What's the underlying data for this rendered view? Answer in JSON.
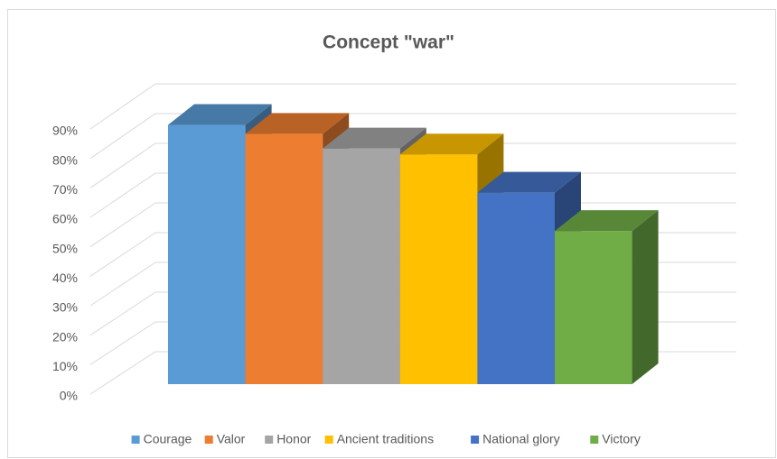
{
  "chart_data": {
    "type": "bar",
    "title": "Concept \"war\"",
    "categories": [
      "Courage",
      "Valor",
      "Honor",
      "Ancient traditions",
      "National glory",
      "Victory"
    ],
    "values": [
      88,
      85,
      80,
      78,
      65,
      52
    ],
    "colors": [
      "#5b9bd5",
      "#ed7d31",
      "#a5a5a5",
      "#ffc000",
      "#4472c4",
      "#70ad47"
    ],
    "ylim": [
      0,
      90
    ],
    "yticks": [
      {
        "value": 0,
        "label": "0%"
      },
      {
        "value": 10,
        "label": "10%"
      },
      {
        "value": 20,
        "label": "20%"
      },
      {
        "value": 30,
        "label": "30%"
      },
      {
        "value": 40,
        "label": "40%"
      },
      {
        "value": 50,
        "label": "50%"
      },
      {
        "value": 60,
        "label": "60%"
      },
      {
        "value": 70,
        "label": "70%"
      },
      {
        "value": 80,
        "label": "80%"
      },
      {
        "value": 90,
        "label": "90%"
      }
    ],
    "grid": true,
    "legend": "bottom"
  }
}
